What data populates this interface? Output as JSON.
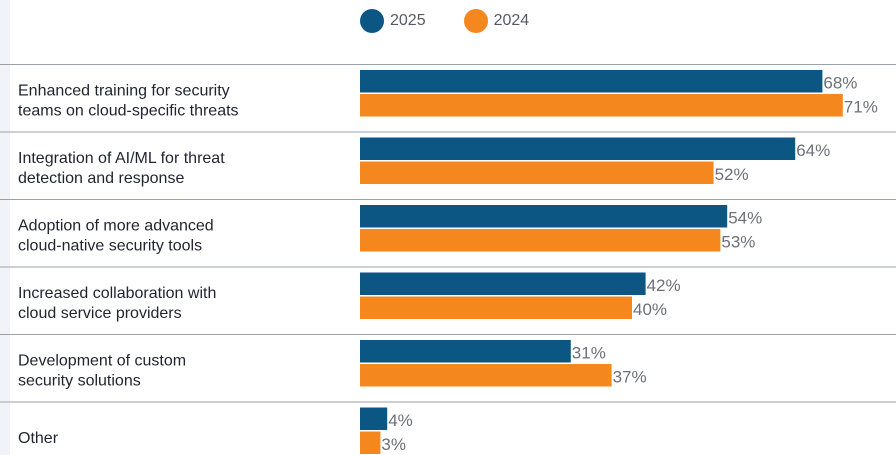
{
  "chart_data": {
    "type": "bar",
    "orientation": "horizontal",
    "categories": [
      [
        "Enhanced training for security",
        "teams on cloud-specific threats"
      ],
      [
        "Integration of AI/ML for threat",
        "detection and response"
      ],
      [
        "Adoption of more advanced",
        "cloud-native security tools"
      ],
      [
        "Increased collaboration with",
        "cloud service providers"
      ],
      [
        "Development of custom",
        "security solutions"
      ],
      [
        "Other"
      ]
    ],
    "series": [
      {
        "name": "2025",
        "color": "#0b5683",
        "values": [
          68,
          64,
          54,
          42,
          31,
          4
        ],
        "labels": [
          "68%",
          "64%",
          "54%",
          "42%",
          "31%",
          "4%"
        ]
      },
      {
        "name": "2024",
        "color": "#f5871f",
        "values": [
          71,
          52,
          53,
          40,
          37,
          3
        ],
        "labels": [
          "71%",
          "52%",
          "53%",
          "40%",
          "37%",
          "3%"
        ]
      }
    ],
    "xlim": [
      0,
      100
    ],
    "unit": "%",
    "legend_position": "top",
    "grid": false
  }
}
